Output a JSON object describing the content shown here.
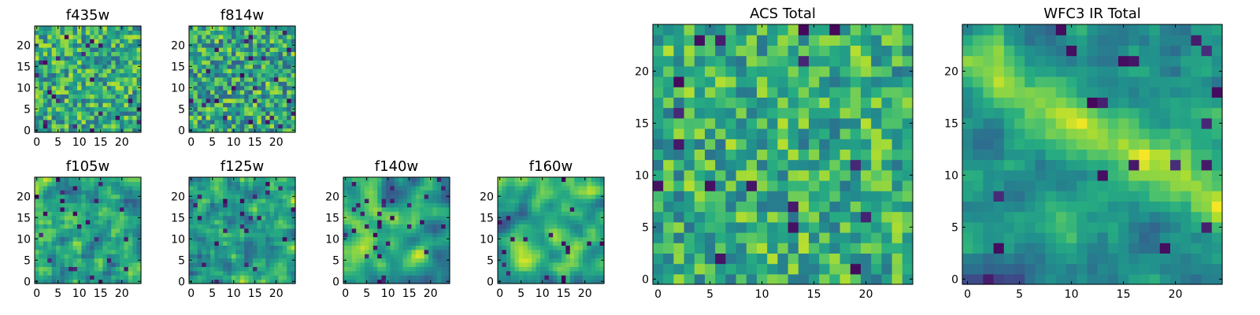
{
  "figure": {
    "description_source": "multi-panel heatmap figure",
    "colormap": "viridis",
    "colors": {
      "low": "#440154",
      "mid": "#21918c",
      "high": "#fde725",
      "frame": "#000000",
      "background": "#ffffff"
    }
  },
  "chart_data": [
    {
      "id": "f435w",
      "type": "heatmap",
      "title": "f435w",
      "grid_size": 25,
      "seed": 11,
      "smooth": 0,
      "bias": 0.62,
      "spread": 0.28,
      "xticks": [
        0,
        5,
        10,
        15,
        20
      ],
      "yticks": [
        0,
        5,
        10,
        15,
        20
      ],
      "xlim": [
        0,
        25
      ],
      "ylim": [
        0,
        25
      ]
    },
    {
      "id": "f814w",
      "type": "heatmap",
      "title": "f814w",
      "grid_size": 25,
      "seed": 23,
      "smooth": 0,
      "bias": 0.6,
      "spread": 0.3,
      "xticks": [
        0,
        5,
        10,
        15,
        20
      ],
      "yticks": [
        0,
        5,
        10,
        15,
        20
      ],
      "xlim": [
        0,
        25
      ],
      "ylim": [
        0,
        25
      ]
    },
    {
      "id": "f105w",
      "type": "heatmap",
      "title": "f105w",
      "grid_size": 25,
      "seed": 37,
      "smooth": 1,
      "bias": 0.6,
      "spread": 0.32,
      "xticks": [
        0,
        5,
        10,
        15,
        20
      ],
      "yticks": [
        0,
        5,
        10,
        15,
        20
      ],
      "xlim": [
        0,
        25
      ],
      "ylim": [
        0,
        25
      ]
    },
    {
      "id": "f125w",
      "type": "heatmap",
      "title": "f125w",
      "grid_size": 25,
      "seed": 41,
      "smooth": 1,
      "bias": 0.6,
      "spread": 0.32,
      "xticks": [
        0,
        5,
        10,
        15,
        20
      ],
      "yticks": [
        0,
        5,
        10,
        15,
        20
      ],
      "xlim": [
        0,
        25
      ],
      "ylim": [
        0,
        25
      ]
    },
    {
      "id": "f140w",
      "type": "heatmap",
      "title": "f140w",
      "grid_size": 25,
      "seed": 53,
      "smooth": 2,
      "bias": 0.6,
      "spread": 0.34,
      "xticks": [
        0,
        5,
        10,
        15,
        20
      ],
      "yticks": [
        0,
        5,
        10,
        15,
        20
      ],
      "xlim": [
        0,
        25
      ],
      "ylim": [
        0,
        25
      ]
    },
    {
      "id": "f160w",
      "type": "heatmap",
      "title": "f160w",
      "grid_size": 25,
      "seed": 67,
      "smooth": 2,
      "bias": 0.6,
      "spread": 0.34,
      "xticks": [
        0,
        5,
        10,
        15,
        20
      ],
      "yticks": [
        0,
        5,
        10,
        15,
        20
      ],
      "xlim": [
        0,
        25
      ],
      "ylim": [
        0,
        25
      ]
    },
    {
      "id": "acs-total",
      "type": "heatmap",
      "title": "ACS Total",
      "grid_size": 25,
      "seed": 79,
      "smooth": 0,
      "bias": 0.64,
      "spread": 0.26,
      "xticks": [
        0,
        5,
        10,
        15,
        20
      ],
      "yticks": [
        0,
        5,
        10,
        15,
        20
      ],
      "xlim": [
        0,
        25
      ],
      "ylim": [
        0,
        25
      ]
    },
    {
      "id": "wfc3-ir-total",
      "type": "heatmap",
      "title": "WFC3 IR Total",
      "grid_size": 25,
      "seed": 97,
      "smooth": 1,
      "bias": 0.46,
      "spread": 0.26,
      "diagonal_ridge": 0.35,
      "xticks": [
        0,
        5,
        10,
        15,
        20
      ],
      "yticks": [
        0,
        5,
        10,
        15,
        20
      ],
      "xlim": [
        0,
        25
      ],
      "ylim": [
        0,
        25
      ]
    }
  ]
}
